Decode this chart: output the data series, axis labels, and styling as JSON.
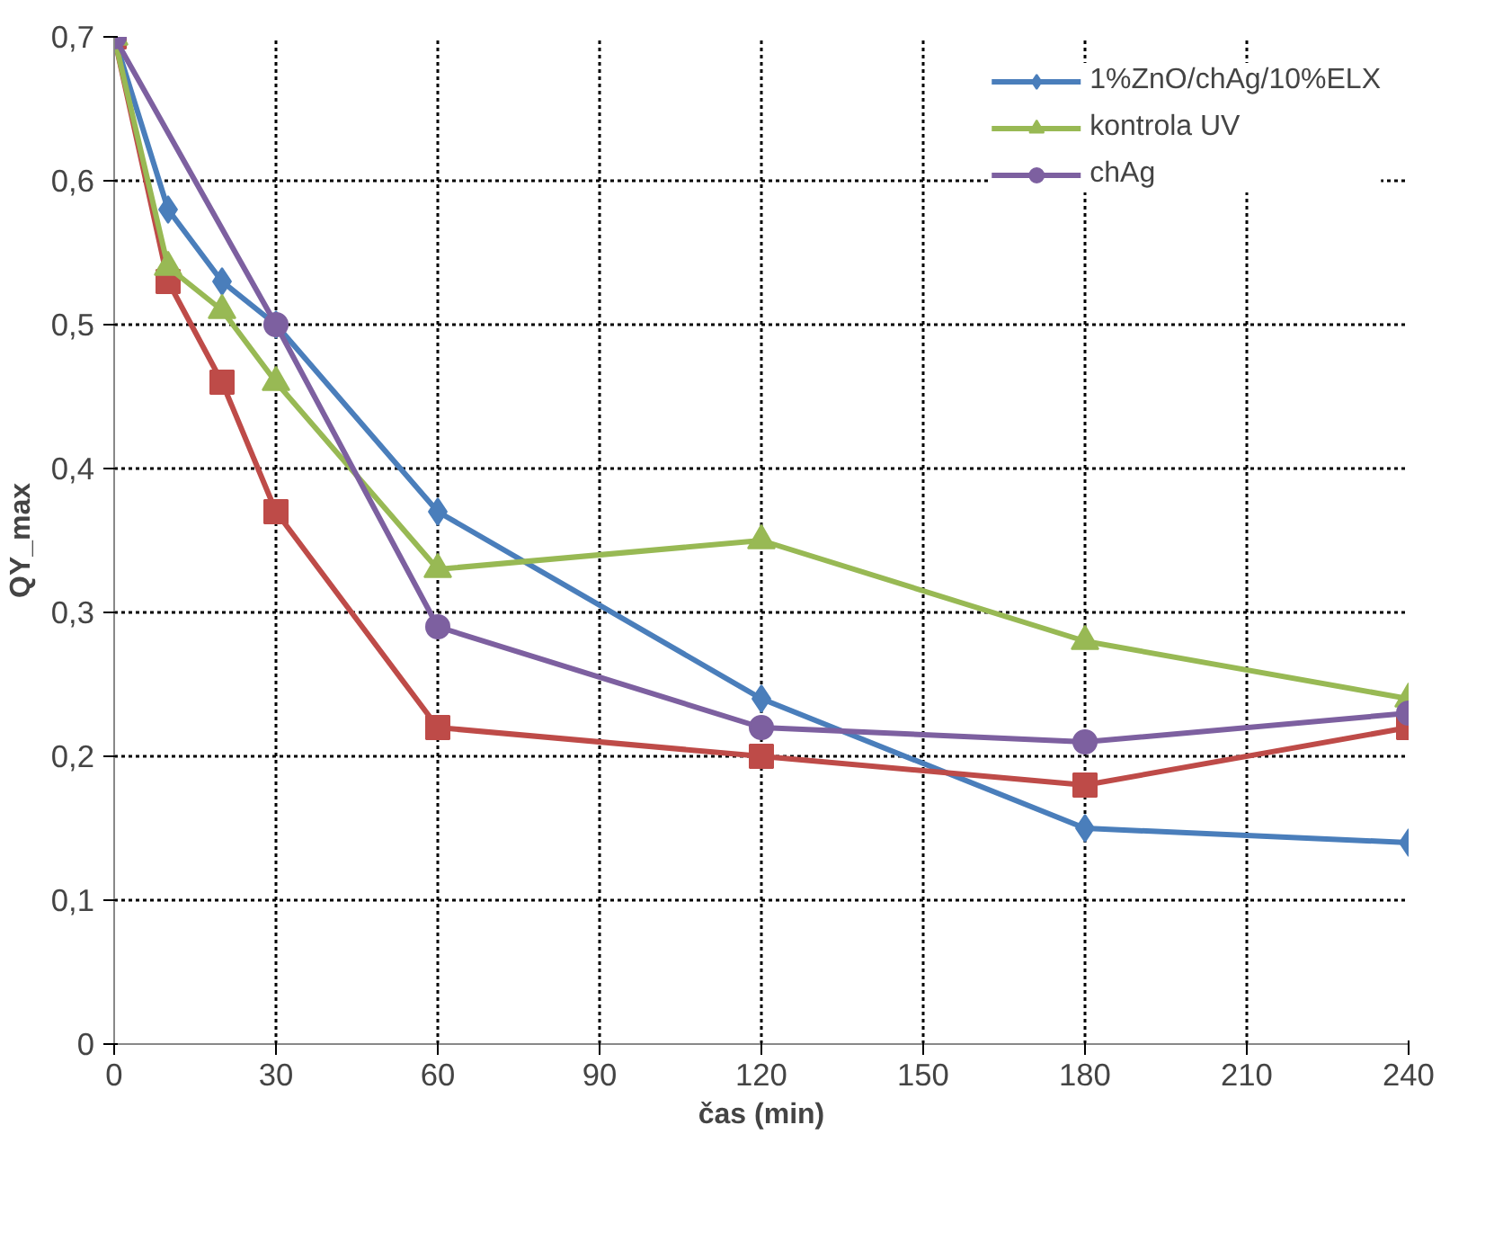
{
  "chart_data": {
    "type": "line",
    "xlabel": "čas (min)",
    "ylabel": "QY_max",
    "x": [
      0,
      10,
      20,
      30,
      60,
      120,
      180,
      240
    ],
    "series": [
      {
        "name": "1%ZnO/chAg/10%ELX",
        "color": "#4a7ebb",
        "marker": "diamond",
        "values": [
          0.7,
          0.58,
          0.53,
          0.5,
          0.37,
          0.24,
          0.15,
          0.14
        ]
      },
      {
        "color": "#be4b48",
        "marker": "square",
        "values": [
          0.7,
          0.53,
          0.46,
          0.37,
          0.22,
          0.2,
          0.18,
          0.22
        ]
      },
      {
        "name": "kontrola UV",
        "color": "#98b954",
        "marker": "triangle",
        "values": [
          0.7,
          0.54,
          0.51,
          0.46,
          0.33,
          0.35,
          0.28,
          0.24
        ]
      },
      {
        "name": "chAg",
        "color": "#7d60a0",
        "marker": "circle",
        "x": [
          0,
          30,
          60,
          120,
          180,
          240
        ],
        "values": [
          0.7,
          0.5,
          0.29,
          0.22,
          0.21,
          0.23
        ]
      }
    ],
    "xlim": [
      0,
      240
    ],
    "xticks": [
      0,
      30,
      60,
      90,
      120,
      150,
      180,
      210,
      240
    ],
    "ylim": [
      0,
      0.7
    ],
    "yticks": [
      {
        "value": 0,
        "label": "0"
      },
      {
        "value": 0.1,
        "label": "0,1"
      },
      {
        "value": 0.2,
        "label": "0,2"
      },
      {
        "value": 0.3,
        "label": "0,3"
      },
      {
        "value": 0.4,
        "label": "0,4"
      },
      {
        "value": 0.5,
        "label": "0,5"
      },
      {
        "value": 0.6,
        "label": "0,6"
      },
      {
        "value": 0.7,
        "label": "0,7"
      }
    ],
    "grid": true,
    "legend": "top right",
    "line_style": "solid"
  }
}
